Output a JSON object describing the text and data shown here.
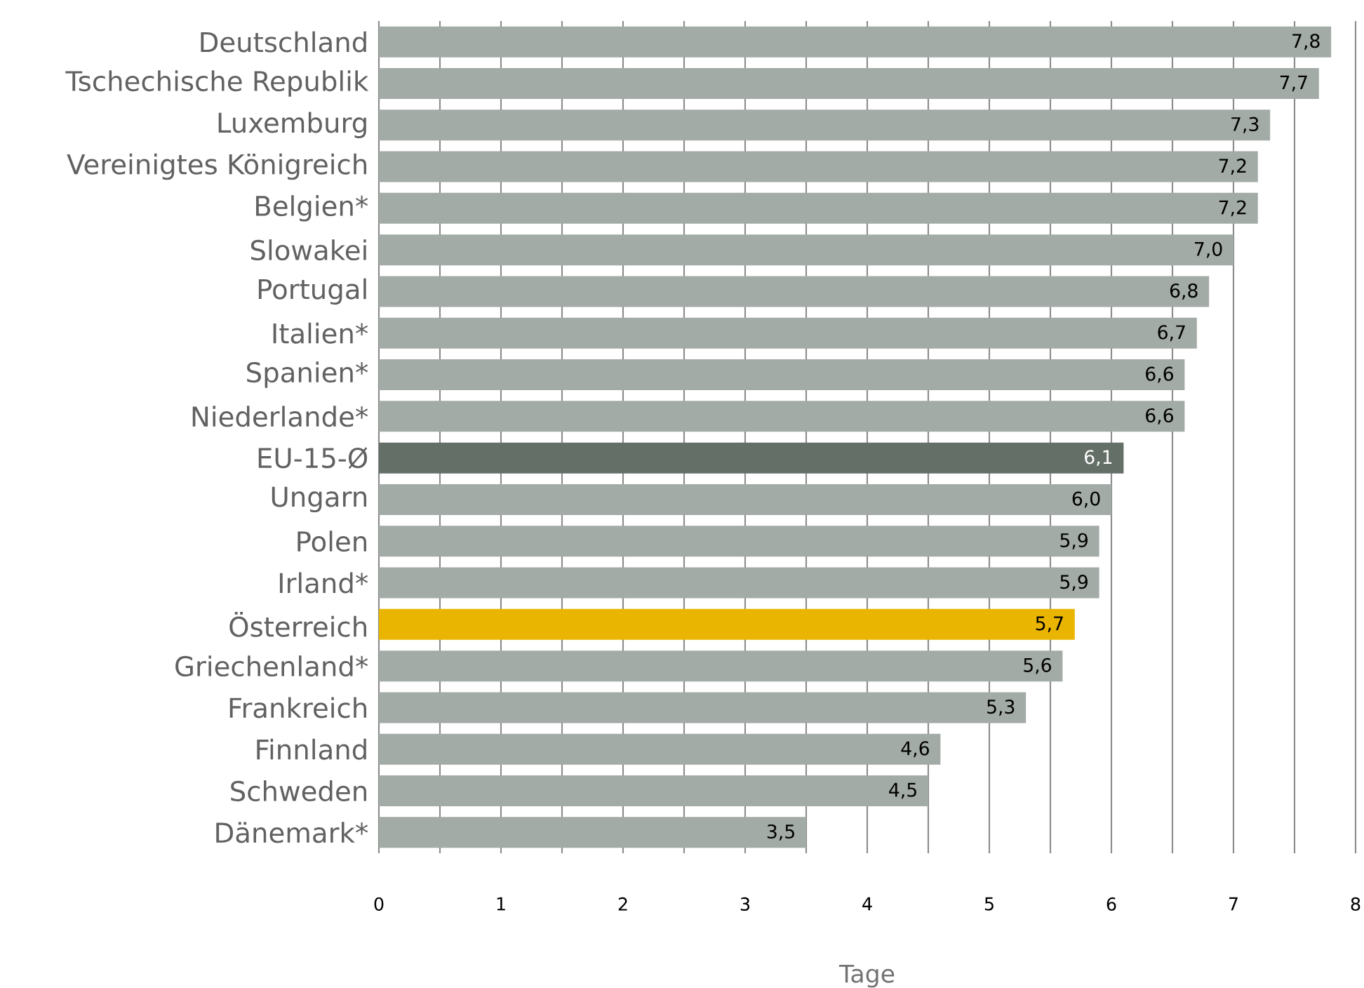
{
  "chart_data": {
    "type": "bar",
    "orientation": "horizontal",
    "xlabel": "Tage",
    "categories": [
      "Deutschland",
      "Tschechische Republik",
      "Luxemburg",
      "Vereinigtes Königreich",
      "Belgien*",
      "Slowakei",
      "Portugal",
      "Italien*",
      "Spanien*",
      "Niederlande*",
      "EU-15-Ø",
      "Ungarn",
      "Polen",
      "Irland*",
      "Österreich",
      "Griechenland*",
      "Frankreich",
      "Finnland",
      "Schweden",
      "Dänemark*"
    ],
    "values": [
      7.8,
      7.7,
      7.3,
      7.2,
      7.2,
      7.0,
      6.8,
      6.7,
      6.6,
      6.6,
      6.1,
      6.0,
      5.9,
      5.9,
      5.7,
      5.6,
      5.3,
      4.6,
      4.5,
      3.5
    ],
    "value_labels": [
      "7,8",
      "7,7",
      "7,3",
      "7,2",
      "7,2",
      "7,0",
      "6,8",
      "6,7",
      "6,6",
      "6,6",
      "6,1",
      "6,0",
      "5,9",
      "5,9",
      "5,7",
      "5,6",
      "5,3",
      "4,6",
      "4,5",
      "3,5"
    ],
    "colors": [
      "#a3aba6",
      "#a3aba6",
      "#a3aba6",
      "#a3aba6",
      "#a3aba6",
      "#a3aba6",
      "#a3aba6",
      "#a3aba6",
      "#a3aba6",
      "#a3aba6",
      "#646f67",
      "#a3aba6",
      "#a3aba6",
      "#a3aba6",
      "#e9b500",
      "#a3aba6",
      "#a3aba6",
      "#a3aba6",
      "#a3aba6",
      "#a3aba6"
    ],
    "xlim": [
      0,
      8
    ],
    "xticks": [
      0,
      {
        "value": 0.5,
        "label": null
      },
      1,
      {
        "value": 1.5,
        "label": null
      },
      2,
      {
        "value": 2.5,
        "label": null
      },
      3,
      {
        "value": 3.5,
        "label": null
      },
      4,
      {
        "value": 4.5,
        "label": null
      },
      5,
      {
        "value": 5.5,
        "label": null
      },
      6,
      {
        "value": 6.5,
        "label": null
      },
      7,
      {
        "value": 7.5,
        "label": null
      },
      8
    ],
    "grid": "x"
  }
}
